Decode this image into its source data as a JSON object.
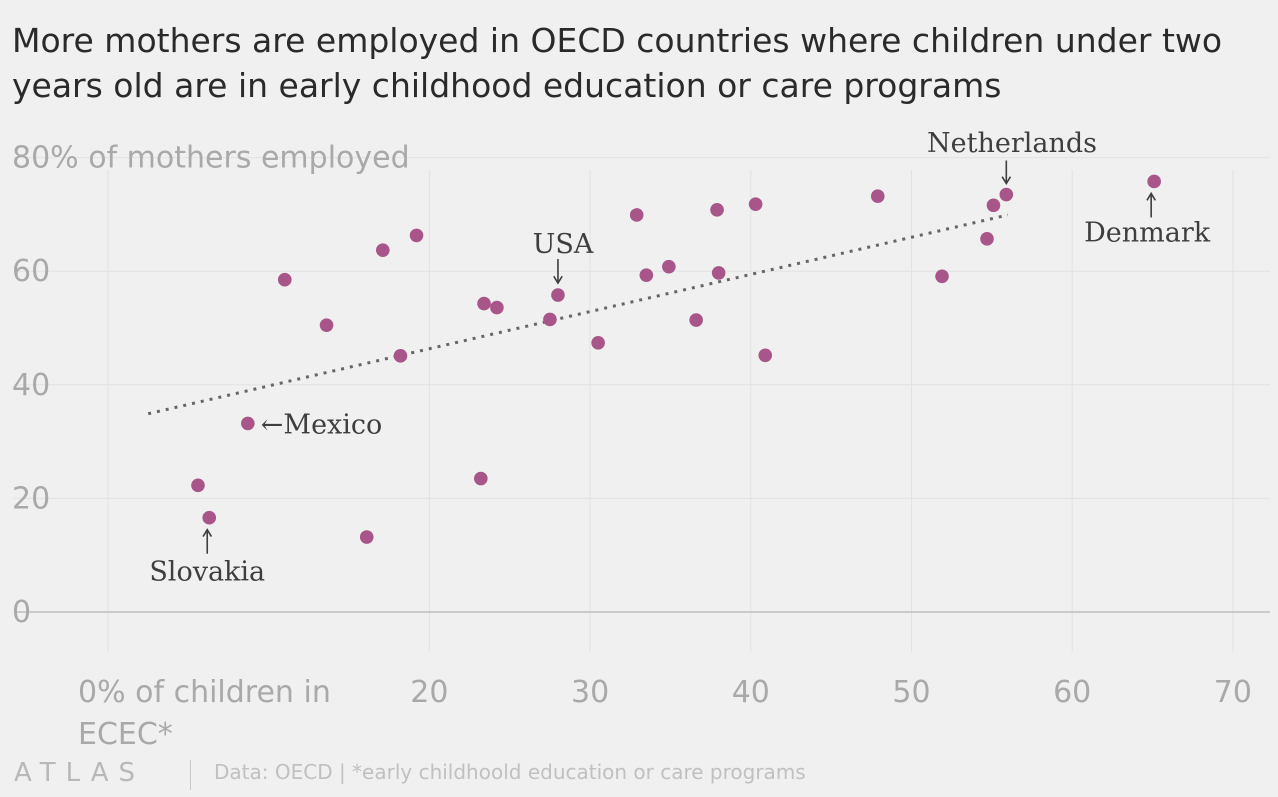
{
  "title": "More mothers are employed in OECD countries where children under two years old are in early childhood education or care programs",
  "footer": {
    "logo": "ATLAS",
    "source": "Data: OECD | *early childhoold education or care programs"
  },
  "colors": {
    "point": "#a8558a",
    "trend": "#666666",
    "background": "#f0f0f0"
  },
  "chart_data": {
    "type": "scatter",
    "title": "More mothers are employed in OECD countries where children under two years old are in early childhood education or care programs",
    "xlabel": "% of children in ECEC*",
    "ylabel": "% of mothers employed",
    "xlim": [
      0,
      70
    ],
    "ylim": [
      0,
      80
    ],
    "xticks": [
      {
        "value": 0,
        "label": "0% of children in"
      },
      {
        "value": 20,
        "label": "20"
      },
      {
        "value": 30,
        "label": "30"
      },
      {
        "value": 40,
        "label": "40"
      },
      {
        "value": 50,
        "label": "50"
      },
      {
        "value": 60,
        "label": "60"
      },
      {
        "value": 70,
        "label": "70"
      }
    ],
    "xlabel_line2": "ECEC*",
    "yticks": [
      {
        "value": 80,
        "label": "80% of mothers employed"
      },
      {
        "value": 60,
        "label": "60"
      },
      {
        "value": 40,
        "label": "40"
      },
      {
        "value": 20,
        "label": "20"
      },
      {
        "value": 0,
        "label": "0"
      }
    ],
    "grid": true,
    "points": [
      {
        "x": 5.6,
        "y": 22.3
      },
      {
        "x": 6.3,
        "y": 16.6,
        "label": "Slovakia"
      },
      {
        "x": 8.7,
        "y": 33.2,
        "label": "Mexico"
      },
      {
        "x": 11.0,
        "y": 58.5
      },
      {
        "x": 13.6,
        "y": 50.5
      },
      {
        "x": 16.1,
        "y": 13.2
      },
      {
        "x": 17.1,
        "y": 63.7
      },
      {
        "x": 18.2,
        "y": 45.1
      },
      {
        "x": 19.2,
        "y": 66.3
      },
      {
        "x": 23.2,
        "y": 23.5
      },
      {
        "x": 23.4,
        "y": 54.3
      },
      {
        "x": 24.2,
        "y": 53.6
      },
      {
        "x": 27.5,
        "y": 51.5
      },
      {
        "x": 28.0,
        "y": 55.8,
        "label": "USA"
      },
      {
        "x": 30.5,
        "y": 47.4
      },
      {
        "x": 32.9,
        "y": 69.9
      },
      {
        "x": 33.5,
        "y": 59.3
      },
      {
        "x": 34.9,
        "y": 60.8
      },
      {
        "x": 36.6,
        "y": 51.4
      },
      {
        "x": 37.9,
        "y": 70.8
      },
      {
        "x": 38.0,
        "y": 59.7
      },
      {
        "x": 40.3,
        "y": 71.8
      },
      {
        "x": 40.9,
        "y": 45.2
      },
      {
        "x": 47.9,
        "y": 73.2
      },
      {
        "x": 51.9,
        "y": 59.1
      },
      {
        "x": 54.7,
        "y": 65.7
      },
      {
        "x": 55.1,
        "y": 71.6
      },
      {
        "x": 55.9,
        "y": 73.5,
        "label": "Netherlands"
      },
      {
        "x": 65.1,
        "y": 75.8,
        "label": "Denmark"
      }
    ],
    "trendline": {
      "x": [
        2.5,
        56.0
      ],
      "y": [
        34.9,
        69.9
      ]
    },
    "annotations": [
      {
        "text": "Slovakia",
        "arrow": "↑"
      },
      {
        "text": "←Mexico",
        "arrow": "←"
      },
      {
        "text": "USA",
        "arrow": "↓"
      },
      {
        "text": "Netherlands",
        "arrow": "↓"
      },
      {
        "text": "Denmark",
        "arrow": "↑"
      }
    ]
  }
}
